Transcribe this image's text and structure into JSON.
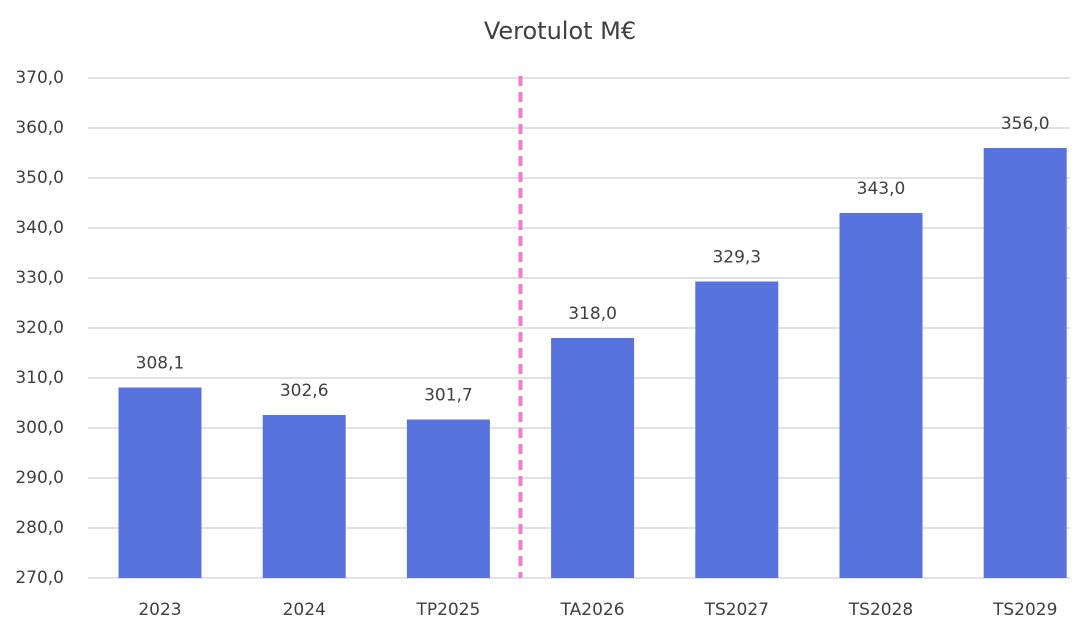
{
  "chart_data": {
    "type": "bar",
    "title": "Verotulot M€",
    "categories": [
      "2023",
      "2024",
      "TP2025",
      "TA2026",
      "TS2027",
      "TS2028",
      "TS2029"
    ],
    "values": [
      308.1,
      302.6,
      301.7,
      318.0,
      329.3,
      343.0,
      356.0
    ],
    "value_labels": [
      "308,1",
      "302,6",
      "301,7",
      "318,0",
      "329,3",
      "343,0",
      "356,0"
    ],
    "color": "#5872de",
    "ylim": [
      270,
      370
    ],
    "yticks": [
      {
        "value": 270,
        "label": "270,0"
      },
      {
        "value": 280,
        "label": "280,0"
      },
      {
        "value": 290,
        "label": "290,0"
      },
      {
        "value": 300,
        "label": "300,0"
      },
      {
        "value": 310,
        "label": "310,0"
      },
      {
        "value": 320,
        "label": "320,0"
      },
      {
        "value": 330,
        "label": "330,0"
      },
      {
        "value": 340,
        "label": "340,0"
      },
      {
        "value": 350,
        "label": "350,0"
      },
      {
        "value": 360,
        "label": "360,0"
      },
      {
        "value": 370,
        "label": "370,0"
      }
    ],
    "grid": true
  }
}
